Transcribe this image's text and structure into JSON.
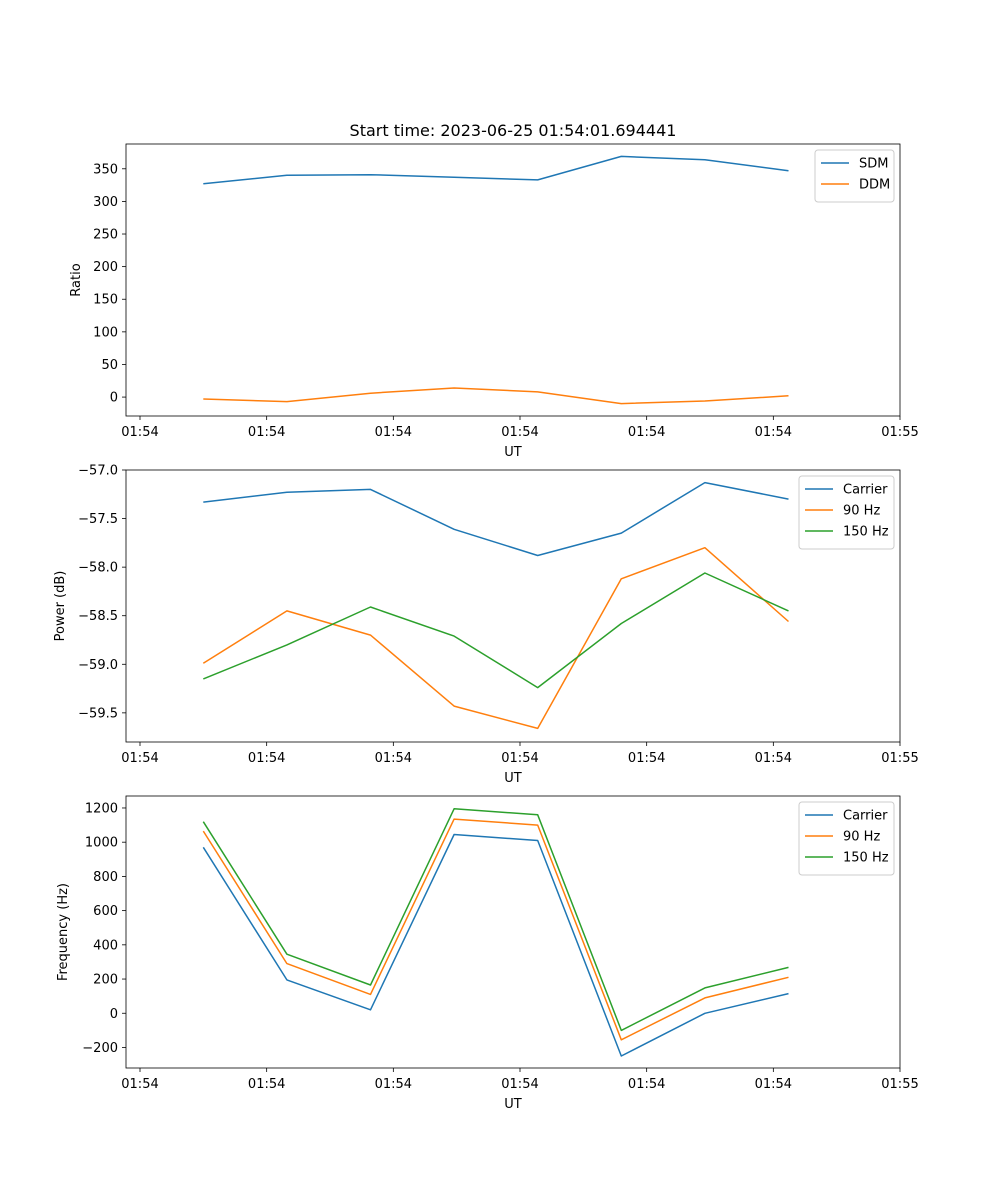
{
  "figure": {
    "title": "Start time: 2023-06-25 01:54:01.694441"
  },
  "chart_data": [
    {
      "type": "line",
      "xlabel": "UT",
      "ylabel": "Ratio",
      "x": [
        0.5,
        1.16,
        1.82,
        2.48,
        3.14,
        3.8,
        4.46,
        5.12
      ],
      "xlim": [
        0,
        6
      ],
      "x_ticks": [
        0,
        1,
        2,
        3,
        4,
        5,
        6
      ],
      "x_tick_labels": [
        "01:54",
        "01:54",
        "01:54",
        "01:54",
        "01:54",
        "01:54",
        "01:55"
      ],
      "ylim": [
        -29,
        388
      ],
      "y_ticks": [
        0,
        50,
        100,
        150,
        200,
        250,
        300,
        350
      ],
      "legend_position": "upper-right",
      "grid": false,
      "series": [
        {
          "name": "SDM",
          "color": "#1f77b4",
          "values": [
            327,
            340,
            341,
            337,
            333,
            369,
            364,
            347
          ]
        },
        {
          "name": "DDM",
          "color": "#ff7f0e",
          "values": [
            -3,
            -7,
            6,
            14,
            8,
            -10,
            -6,
            2
          ]
        }
      ]
    },
    {
      "type": "line",
      "xlabel": "UT",
      "ylabel": "Power (dB)",
      "x": [
        0.5,
        1.16,
        1.82,
        2.48,
        3.14,
        3.8,
        4.46,
        5.12
      ],
      "xlim": [
        0,
        6
      ],
      "x_ticks": [
        0,
        1,
        2,
        3,
        4,
        5,
        6
      ],
      "x_tick_labels": [
        "01:54",
        "01:54",
        "01:54",
        "01:54",
        "01:54",
        "01:54",
        "01:55"
      ],
      "ylim": [
        -59.8,
        -57.0
      ],
      "y_ticks": [
        -57.0,
        -57.5,
        -58.0,
        -58.5,
        -59.0,
        -59.5
      ],
      "y_tick_labels": [
        "−57.0",
        "−57.5",
        "−58.0",
        "−58.5",
        "−59.0",
        "−59.5"
      ],
      "legend_position": "upper-right",
      "grid": false,
      "series": [
        {
          "name": "Carrier",
          "color": "#1f77b4",
          "values": [
            -57.33,
            -57.23,
            -57.2,
            -57.61,
            -57.88,
            -57.65,
            -57.13,
            -57.3
          ]
        },
        {
          "name": "90 Hz",
          "color": "#ff7f0e",
          "values": [
            -58.99,
            -58.45,
            -58.7,
            -59.43,
            -59.66,
            -58.12,
            -57.8,
            -58.56
          ]
        },
        {
          "name": "150 Hz",
          "color": "#2ca02c",
          "values": [
            -59.15,
            -58.8,
            -58.41,
            -58.71,
            -59.24,
            -58.58,
            -58.06,
            -58.45
          ]
        }
      ]
    },
    {
      "type": "line",
      "xlabel": "UT",
      "ylabel": "Frequency (Hz)",
      "x": [
        0.5,
        1.16,
        1.82,
        2.48,
        3.14,
        3.8,
        4.46,
        5.12
      ],
      "xlim": [
        0,
        6
      ],
      "x_ticks": [
        0,
        1,
        2,
        3,
        4,
        5,
        6
      ],
      "x_tick_labels": [
        "01:54",
        "01:54",
        "01:54",
        "01:54",
        "01:54",
        "01:54",
        "01:55"
      ],
      "ylim": [
        -320,
        1270
      ],
      "y_ticks": [
        -200,
        0,
        200,
        400,
        600,
        800,
        1000,
        1200
      ],
      "y_tick_labels": [
        "−200",
        "0",
        "200",
        "400",
        "600",
        "800",
        "1000",
        "1200"
      ],
      "legend_position": "upper-right",
      "grid": false,
      "series": [
        {
          "name": "Carrier",
          "color": "#1f77b4",
          "values": [
            970,
            195,
            20,
            1045,
            1010,
            -250,
            0,
            115
          ]
        },
        {
          "name": "90 Hz",
          "color": "#ff7f0e",
          "values": [
            1065,
            290,
            110,
            1135,
            1100,
            -155,
            90,
            210
          ]
        },
        {
          "name": "150 Hz",
          "color": "#2ca02c",
          "values": [
            1120,
            345,
            165,
            1195,
            1160,
            -100,
            148,
            268
          ]
        }
      ]
    }
  ]
}
